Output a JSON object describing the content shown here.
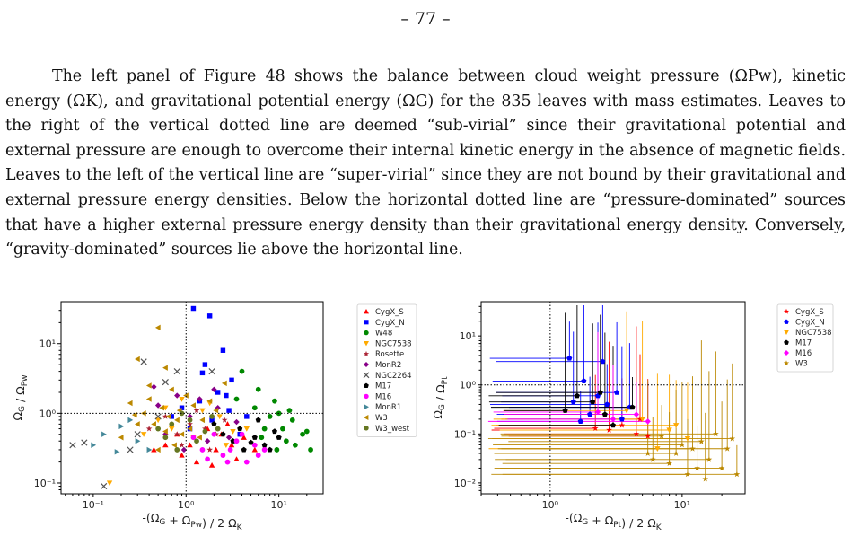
{
  "page": {
    "number": "– 77 –",
    "paragraph": "The left panel of Figure 48 shows the balance between cloud weight pressure (ΩPw), kinetic energy (ΩK), and gravitational potential energy (ΩG) for the 835 leaves with mass estimates. Leaves to the right of the vertical dotted line are deemed “sub-virial” since their gravitational potential and external pressure are enough to overcome their internal kinetic energy in the absence of magnetic fields. Leaves to the left of the vertical line are “super-virial” since they are not bound by their gravitational and external pressure energy densities. Below the horizontal dotted line are “pressure-dominated” sources that have a higher external pressure energy density than their gravitational energy density. Conversely, “gravity-dominated” sources lie above the horizontal line."
  },
  "chart_data": [
    {
      "type": "scatter",
      "xlabel": "-(ΩG + ΩPw) / 2 ΩK",
      "ylabel": "ΩG / ΩPw",
      "xscale": "log",
      "yscale": "log",
      "xlim": [
        0.045,
        30
      ],
      "ylim": [
        0.07,
        40
      ],
      "xticks": [
        {
          "v": 0.1,
          "label": "10⁻¹"
        },
        {
          "v": 1,
          "label": "10⁰"
        },
        {
          "v": 10,
          "label": "10¹"
        }
      ],
      "yticks": [
        {
          "v": 0.1,
          "label": "10⁻¹"
        },
        {
          "v": 1,
          "label": "10⁰"
        },
        {
          "v": 10,
          "label": "10¹"
        }
      ],
      "reference_lines": {
        "x": 1,
        "y": 1,
        "style": "dotted"
      },
      "legend_position": "outside-right",
      "series": [
        {
          "name": "CygX_S",
          "color": "#ff0000",
          "marker": "triangle",
          "points": [
            [
              0.6,
              0.35
            ],
            [
              0.9,
              0.25
            ],
            [
              1.3,
              0.2
            ],
            [
              2.1,
              0.3
            ],
            [
              3.5,
              0.22
            ],
            [
              4.2,
              0.45
            ],
            [
              1.7,
              0.6
            ],
            [
              0.8,
              0.5
            ],
            [
              2.8,
              0.7
            ],
            [
              1.1,
              0.35
            ],
            [
              5.5,
              0.3
            ],
            [
              0.45,
              0.3
            ],
            [
              1.9,
              0.18
            ],
            [
              2.4,
              0.5
            ],
            [
              3.1,
              0.35
            ]
          ]
        },
        {
          "name": "CygX_N",
          "color": "#0000ff",
          "marker": "square",
          "points": [
            [
              1.2,
              32
            ],
            [
              1.8,
              25
            ],
            [
              2.5,
              8
            ],
            [
              1.6,
              5
            ],
            [
              3.1,
              3
            ],
            [
              2.2,
              2
            ],
            [
              1.4,
              1.5
            ],
            [
              0.9,
              1.2
            ],
            [
              4.5,
              0.9
            ],
            [
              1.9,
              0.8
            ],
            [
              1.1,
              0.6
            ],
            [
              3.8,
              0.5
            ],
            [
              2.7,
              1.8
            ],
            [
              1.5,
              3.8
            ],
            [
              2.9,
              1.1
            ],
            [
              0.7,
              0.9
            ]
          ]
        },
        {
          "name": "W48",
          "color": "#008800",
          "marker": "circle",
          "points": [
            [
              4,
              4
            ],
            [
              6,
              2.2
            ],
            [
              9,
              1.5
            ],
            [
              14,
              0.8
            ],
            [
              18,
              0.5
            ],
            [
              22,
              0.3
            ],
            [
              12,
              0.4
            ],
            [
              7,
              0.6
            ],
            [
              10,
              1
            ],
            [
              15,
              0.35
            ],
            [
              5.5,
              1.2
            ],
            [
              8,
              0.9
            ],
            [
              11,
              0.6
            ],
            [
              20,
              0.55
            ],
            [
              3.5,
              1.6
            ],
            [
              13,
              1.1
            ],
            [
              6.5,
              0.45
            ],
            [
              9.5,
              0.3
            ]
          ]
        },
        {
          "name": "NGC7538",
          "color": "#ffaa00",
          "marker": "triangle-down",
          "points": [
            [
              0.15,
              0.1
            ],
            [
              0.5,
              0.8
            ],
            [
              0.9,
              1.6
            ],
            [
              1.5,
              1.1
            ],
            [
              2.3,
              0.9
            ],
            [
              0.7,
              0.6
            ],
            [
              1.2,
              0.45
            ],
            [
              3.2,
              0.55
            ],
            [
              0.35,
              0.5
            ],
            [
              1.8,
              1.4
            ],
            [
              2.7,
              0.35
            ],
            [
              4.5,
              0.6
            ],
            [
              0.6,
              1.2
            ]
          ]
        },
        {
          "name": "Rosette",
          "color": "#aa2233",
          "marker": "star",
          "points": [
            [
              0.6,
              0.9
            ],
            [
              1.1,
              0.7
            ],
            [
              0.8,
              0.5
            ],
            [
              1.6,
              0.6
            ],
            [
              0.4,
              0.6
            ],
            [
              2.1,
              0.5
            ],
            [
              1.3,
              1.1
            ],
            [
              0.9,
              0.35
            ],
            [
              2.6,
              0.8
            ],
            [
              1.8,
              0.3
            ]
          ]
        },
        {
          "name": "MonR2",
          "color": "#880088",
          "marker": "diamond",
          "points": [
            [
              0.45,
              2.4
            ],
            [
              0.8,
              1.8
            ],
            [
              1.4,
              1.6
            ],
            [
              2.2,
              1.2
            ],
            [
              1.1,
              0.9
            ],
            [
              0.6,
              0.5
            ],
            [
              1.7,
              0.4
            ],
            [
              2.9,
              0.45
            ],
            [
              0.95,
              0.3
            ],
            [
              3.5,
              0.75
            ],
            [
              0.5,
              1.3
            ],
            [
              2.0,
              2.2
            ]
          ]
        },
        {
          "name": "NGC2264",
          "color": "#555555",
          "marker": "x",
          "points": [
            [
              0.06,
              0.35
            ],
            [
              0.08,
              0.38
            ],
            [
              0.13,
              0.09
            ],
            [
              0.3,
              0.5
            ],
            [
              0.5,
              0.9
            ],
            [
              0.35,
              5.5
            ],
            [
              0.6,
              2.8
            ],
            [
              1.9,
              4
            ],
            [
              0.8,
              4
            ],
            [
              0.25,
              0.3
            ]
          ]
        },
        {
          "name": "M17",
          "color": "#000000",
          "marker": "pentagon",
          "points": [
            [
              2.5,
              0.5
            ],
            [
              3.8,
              0.6
            ],
            [
              5.5,
              0.45
            ],
            [
              7,
              0.35
            ],
            [
              4.2,
              0.3
            ],
            [
              9,
              0.55
            ],
            [
              6,
              0.8
            ],
            [
              3.2,
              0.4
            ],
            [
              8,
              0.3
            ],
            [
              2,
              0.7
            ],
            [
              5,
              0.38
            ],
            [
              10,
              0.45
            ]
          ]
        },
        {
          "name": "M16",
          "color": "#ff00ff",
          "marker": "circle",
          "points": [
            [
              1.5,
              0.3
            ],
            [
              2.5,
              0.25
            ],
            [
              3.5,
              0.4
            ],
            [
              4.5,
              0.2
            ],
            [
              5.5,
              0.35
            ],
            [
              2,
              0.5
            ],
            [
              3,
              0.3
            ],
            [
              6,
              0.25
            ],
            [
              1.2,
              0.45
            ],
            [
              4,
              0.5
            ],
            [
              7,
              0.3
            ],
            [
              2.8,
              0.2
            ],
            [
              1.7,
              0.22
            ]
          ]
        },
        {
          "name": "MonR1",
          "color": "#448899",
          "marker": "triangle-right",
          "points": [
            [
              0.1,
              0.35
            ],
            [
              0.13,
              0.5
            ],
            [
              0.2,
              0.65
            ],
            [
              0.3,
              0.4
            ],
            [
              0.25,
              0.8
            ],
            [
              0.18,
              0.28
            ],
            [
              0.4,
              0.3
            ]
          ]
        },
        {
          "name": "W3",
          "color": "#bb8800",
          "marker": "triangle-left",
          "points": [
            [
              0.5,
              17
            ],
            [
              0.3,
              6
            ],
            [
              0.6,
              4.5
            ],
            [
              0.4,
              2.5
            ],
            [
              0.7,
              2.2
            ],
            [
              0.25,
              1.4
            ],
            [
              1,
              1.8
            ],
            [
              0.55,
              1.2
            ],
            [
              0.35,
              1.0
            ],
            [
              0.8,
              0.8
            ],
            [
              1.2,
              1.3
            ],
            [
              0.45,
              0.7
            ],
            [
              0.6,
              0.55
            ],
            [
              0.9,
              0.5
            ],
            [
              1.5,
              0.8
            ],
            [
              0.2,
              0.45
            ],
            [
              0.75,
              0.35
            ],
            [
              1.1,
              0.6
            ],
            [
              0.3,
              0.7
            ],
            [
              2.1,
              1.1
            ],
            [
              0.65,
              0.9
            ],
            [
              0.4,
              1.6
            ],
            [
              0.5,
              0.3
            ],
            [
              1.4,
              0.45
            ],
            [
              2.6,
              2.7
            ],
            [
              1.8,
              1.5
            ],
            [
              0.85,
              1.1
            ],
            [
              0.28,
              0.95
            ]
          ]
        },
        {
          "name": "W3_west",
          "color": "#667722",
          "marker": "circle",
          "points": [
            [
              0.7,
              0.7
            ],
            [
              1.1,
              0.8
            ],
            [
              0.5,
              0.6
            ],
            [
              1.6,
              0.55
            ],
            [
              0.9,
              1.0
            ],
            [
              2.2,
              0.6
            ],
            [
              1.3,
              0.4
            ],
            [
              0.6,
              0.45
            ],
            [
              1.9,
              0.9
            ],
            [
              0.8,
              0.3
            ]
          ]
        }
      ]
    },
    {
      "type": "scatter",
      "xlabel": "-(ΩG + ΩPt) / 2 ΩK",
      "ylabel": "ΩG / ΩPt",
      "xscale": "log",
      "yscale": "log",
      "xlim": [
        0.3,
        30
      ],
      "ylim": [
        0.006,
        50
      ],
      "xticks": [
        {
          "v": 1,
          "label": "10⁰"
        },
        {
          "v": 10,
          "label": "10¹"
        }
      ],
      "yticks": [
        {
          "v": 0.01,
          "label": "10⁻²"
        },
        {
          "v": 0.1,
          "label": "10⁻¹"
        },
        {
          "v": 1,
          "label": "10⁰"
        },
        {
          "v": 10,
          "label": "10¹"
        }
      ],
      "reference_lines": {
        "x": 1,
        "y": 1,
        "style": "dotted"
      },
      "legend_position": "outside-right",
      "series": [
        {
          "name": "CygX_S",
          "color": "#ff0000",
          "marker": "star",
          "points": [
            [
              2.8,
              0.12
            ],
            [
              4.5,
              0.1
            ],
            [
              3.5,
              0.15
            ],
            [
              5.5,
              0.09
            ],
            [
              2.2,
              0.13
            ],
            [
              4.8,
              0.2
            ]
          ]
        },
        {
          "name": "CygX_N",
          "color": "#0000ff",
          "marker": "pentagon",
          "points": [
            [
              1.4,
              3.5
            ],
            [
              2.5,
              3
            ],
            [
              1.8,
              1.2
            ],
            [
              3.2,
              0.7
            ],
            [
              1.5,
              0.45
            ],
            [
              2.7,
              0.4
            ],
            [
              4,
              0.35
            ],
            [
              2,
              0.25
            ],
            [
              3.5,
              0.2
            ],
            [
              1.7,
              0.18
            ],
            [
              2.3,
              0.6
            ]
          ]
        },
        {
          "name": "NGC7538",
          "color": "#ffaa00",
          "marker": "triangle-down",
          "points": [
            [
              5,
              0.2
            ],
            [
              8,
              0.12
            ],
            [
              11,
              0.08
            ],
            [
              6.5,
              0.05
            ],
            [
              3.8,
              0.3
            ],
            [
              9,
              0.15
            ]
          ]
        },
        {
          "name": "M17",
          "color": "#000000",
          "marker": "pentagon",
          "points": [
            [
              1.6,
              0.6
            ],
            [
              2.4,
              0.7
            ],
            [
              1.3,
              0.3
            ],
            [
              3,
              0.15
            ],
            [
              2.1,
              0.45
            ],
            [
              4.2,
              0.35
            ],
            [
              2.6,
              0.25
            ]
          ]
        },
        {
          "name": "M16",
          "color": "#ff00ff",
          "marker": "diamond",
          "points": [
            [
              4.5,
              0.25
            ],
            [
              3,
              0.2
            ],
            [
              2.3,
              0.28
            ],
            [
              5.5,
              0.18
            ]
          ]
        },
        {
          "name": "W3",
          "color": "#bb8800",
          "marker": "star",
          "points": [
            [
              7,
              0.09
            ],
            [
              12,
              0.05
            ],
            [
              16,
              0.03
            ],
            [
              20,
              0.02
            ],
            [
              26,
              0.015
            ],
            [
              9,
              0.04
            ],
            [
              14,
              0.07
            ],
            [
              18,
              0.1
            ],
            [
              6,
              0.03
            ],
            [
              11,
              0.015
            ],
            [
              8,
              0.025
            ],
            [
              22,
              0.05
            ],
            [
              15,
              0.012
            ],
            [
              10,
              0.06
            ],
            [
              5.5,
              0.04
            ],
            [
              13,
              0.02
            ],
            [
              24,
              0.08
            ]
          ]
        }
      ]
    }
  ]
}
